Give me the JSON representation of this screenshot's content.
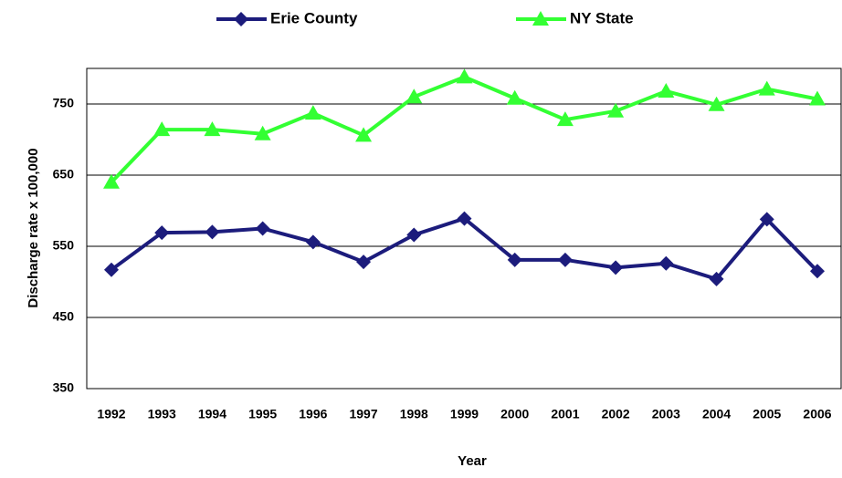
{
  "chart_data": {
    "type": "line",
    "x_label": "Year",
    "y_label": "Discharge rate x 100,000",
    "categories": [
      "1992",
      "1993",
      "1994",
      "1995",
      "1996",
      "1997",
      "1998",
      "1999",
      "2000",
      "2001",
      "2002",
      "2003",
      "2004",
      "2005",
      "2006"
    ],
    "series": [
      {
        "name": "Erie County",
        "color": "#1c1c7c",
        "marker": "diamond",
        "values": [
          517,
          569,
          570,
          575,
          556,
          528,
          566,
          589,
          531,
          531,
          520,
          526,
          504,
          588,
          515
        ]
      },
      {
        "name": "NY State",
        "color": "#33ff33",
        "marker": "triangle",
        "values": [
          640,
          714,
          714,
          708,
          737,
          706,
          760,
          788,
          758,
          728,
          740,
          768,
          749,
          771,
          757
        ]
      }
    ],
    "ylim": [
      350,
      800
    ],
    "yticks": [
      350,
      450,
      550,
      650,
      750
    ],
    "grid": true
  }
}
